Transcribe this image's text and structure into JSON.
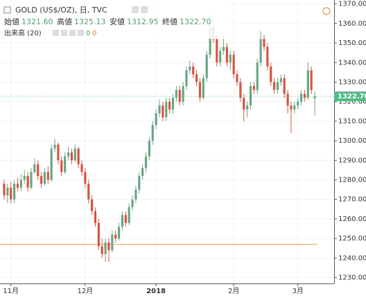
{
  "header": {
    "symbol": "GOLD (US$/OZ), 日, TVC",
    "open_label": "始値",
    "open": "1321.60",
    "high_label": "高値",
    "high": "1325.13",
    "low_label": "安値",
    "low": "1312.95",
    "close_label": "終値",
    "close": "1322.70",
    "volume_label": "出来高 (20)",
    "volume_a": "0",
    "volume_b": "0"
  },
  "chart_data": {
    "type": "candlestick",
    "up_color": "#6ba583",
    "down_color": "#d75442",
    "categories": [
      null,
      null,
      "11月",
      null,
      null,
      null,
      null,
      null,
      null,
      null,
      null,
      null,
      null,
      null,
      null,
      null,
      null,
      null,
      null,
      null,
      null,
      null,
      null,
      null,
      "12月",
      null,
      null,
      null,
      null,
      null,
      null,
      null,
      null,
      null,
      null,
      null,
      null,
      null,
      null,
      null,
      null,
      null,
      null,
      null,
      null,
      "2018",
      null,
      null,
      null,
      null,
      null,
      null,
      null,
      null,
      null,
      null,
      null,
      null,
      null,
      null,
      null,
      null,
      null,
      null,
      null,
      null,
      null,
      null,
      "2月",
      null,
      null,
      null,
      null,
      null,
      null,
      null,
      null,
      null,
      null,
      null,
      null,
      null,
      null,
      null,
      null,
      null,
      null,
      "3月",
      null,
      null,
      null,
      null,
      null
    ],
    "candles": [
      [
        1278,
        1280,
        1270,
        1272
      ],
      [
        1272,
        1278,
        1268,
        1276
      ],
      [
        1276,
        1279,
        1268,
        1270
      ],
      [
        1270,
        1280,
        1268,
        1278
      ],
      [
        1278,
        1281,
        1274,
        1276
      ],
      [
        1276,
        1283,
        1274,
        1280
      ],
      [
        1280,
        1285,
        1278,
        1282
      ],
      [
        1282,
        1284,
        1274,
        1276
      ],
      [
        1276,
        1286,
        1275,
        1284
      ],
      [
        1284,
        1291,
        1283,
        1288
      ],
      [
        1288,
        1290,
        1280,
        1282
      ],
      [
        1282,
        1284,
        1276,
        1278
      ],
      [
        1278,
        1286,
        1277,
        1284
      ],
      [
        1284,
        1287,
        1278,
        1280
      ],
      [
        1280,
        1298,
        1279,
        1296
      ],
      [
        1296,
        1301,
        1294,
        1298
      ],
      [
        1298,
        1299,
        1288,
        1290
      ],
      [
        1290,
        1292,
        1282,
        1284
      ],
      [
        1284,
        1294,
        1283,
        1292
      ],
      [
        1292,
        1297,
        1290,
        1294
      ],
      [
        1294,
        1296,
        1288,
        1290
      ],
      [
        1290,
        1298,
        1289,
        1296
      ],
      [
        1296,
        1297,
        1286,
        1288
      ],
      [
        1288,
        1290,
        1282,
        1284
      ],
      [
        1284,
        1286,
        1276,
        1278
      ],
      [
        1278,
        1280,
        1268,
        1270
      ],
      [
        1270,
        1272,
        1262,
        1264
      ],
      [
        1264,
        1266,
        1256,
        1258
      ],
      [
        1258,
        1260,
        1244,
        1246
      ],
      [
        1246,
        1250,
        1240,
        1242
      ],
      [
        1242,
        1250,
        1238,
        1248
      ],
      [
        1248,
        1250,
        1238,
        1244
      ],
      [
        1244,
        1254,
        1243,
        1252
      ],
      [
        1252,
        1254,
        1248,
        1250
      ],
      [
        1250,
        1258,
        1249,
        1256
      ],
      [
        1256,
        1264,
        1254,
        1262
      ],
      [
        1262,
        1264,
        1256,
        1258
      ],
      [
        1258,
        1268,
        1257,
        1266
      ],
      [
        1266,
        1272,
        1264,
        1270
      ],
      [
        1270,
        1277,
        1268,
        1275
      ],
      [
        1275,
        1284,
        1273,
        1282
      ],
      [
        1282,
        1288,
        1280,
        1286
      ],
      [
        1286,
        1294,
        1284,
        1292
      ],
      [
        1292,
        1302,
        1290,
        1300
      ],
      [
        1300,
        1310,
        1298,
        1308
      ],
      [
        1308,
        1316,
        1306,
        1314
      ],
      [
        1314,
        1321,
        1312,
        1318
      ],
      [
        1318,
        1320,
        1310,
        1312
      ],
      [
        1312,
        1322,
        1310,
        1320
      ],
      [
        1320,
        1322,
        1314,
        1316
      ],
      [
        1316,
        1324,
        1314,
        1322
      ],
      [
        1322,
        1328,
        1320,
        1326
      ],
      [
        1326,
        1328,
        1318,
        1320
      ],
      [
        1320,
        1330,
        1318,
        1328
      ],
      [
        1328,
        1338,
        1326,
        1336
      ],
      [
        1336,
        1341,
        1334,
        1338
      ],
      [
        1338,
        1340,
        1332,
        1334
      ],
      [
        1334,
        1336,
        1328,
        1330
      ],
      [
        1330,
        1332,
        1320,
        1322
      ],
      [
        1322,
        1334,
        1321,
        1332
      ],
      [
        1332,
        1346,
        1330,
        1344
      ],
      [
        1344,
        1366,
        1342,
        1358
      ],
      [
        1358,
        1362,
        1350,
        1352
      ],
      [
        1352,
        1354,
        1338,
        1340
      ],
      [
        1340,
        1348,
        1338,
        1346
      ],
      [
        1346,
        1356,
        1344,
        1348
      ],
      [
        1348,
        1350,
        1338,
        1340
      ],
      [
        1340,
        1346,
        1336,
        1344
      ],
      [
        1344,
        1346,
        1332,
        1334
      ],
      [
        1334,
        1336,
        1328,
        1330
      ],
      [
        1330,
        1332,
        1320,
        1322
      ],
      [
        1322,
        1324,
        1310,
        1316
      ],
      [
        1316,
        1320,
        1312,
        1318
      ],
      [
        1318,
        1330,
        1316,
        1328
      ],
      [
        1328,
        1330,
        1324,
        1326
      ],
      [
        1326,
        1342,
        1324,
        1340
      ],
      [
        1340,
        1356,
        1338,
        1352
      ],
      [
        1352,
        1354,
        1346,
        1348
      ],
      [
        1348,
        1350,
        1336,
        1338
      ],
      [
        1338,
        1340,
        1328,
        1330
      ],
      [
        1330,
        1332,
        1324,
        1326
      ],
      [
        1326,
        1332,
        1324,
        1330
      ],
      [
        1330,
        1334,
        1328,
        1332
      ],
      [
        1332,
        1334,
        1322,
        1324
      ],
      [
        1324,
        1326,
        1314,
        1318
      ],
      [
        1318,
        1320,
        1304,
        1316
      ],
      [
        1316,
        1320,
        1314,
        1318
      ],
      [
        1318,
        1322,
        1316,
        1320
      ],
      [
        1320,
        1326,
        1318,
        1324
      ],
      [
        1324,
        1326,
        1320,
        1322
      ],
      [
        1322,
        1340,
        1321,
        1336
      ],
      [
        1336,
        1338,
        1324,
        1326
      ],
      [
        1321.6,
        1325.13,
        1312.95,
        1322.7
      ]
    ],
    "ylim": [
      1227,
      1372
    ],
    "yticks": [
      {
        "value": 1230,
        "label": "1230.00"
      },
      {
        "value": 1240,
        "label": "1240.00"
      },
      {
        "value": 1250,
        "label": "1250.00"
      },
      {
        "value": 1260,
        "label": "1260.00"
      },
      {
        "value": 1270,
        "label": "1270.00"
      },
      {
        "value": 1280,
        "label": "1280.00"
      },
      {
        "value": 1290,
        "label": "1290.00"
      },
      {
        "value": 1300,
        "label": "1300.00"
      },
      {
        "value": 1310,
        "label": "1310.00"
      },
      {
        "value": 1320,
        "label": "1320.00"
      },
      {
        "value": 1330,
        "label": "1330.00"
      },
      {
        "value": 1340,
        "label": "1340.00"
      },
      {
        "value": 1350,
        "label": "1350.00"
      },
      {
        "value": 1360,
        "label": "1360.00"
      },
      {
        "value": 1370,
        "label": "1370.00"
      }
    ],
    "price_line": {
      "value": 1322.7,
      "label": "1322.70",
      "color": "#53b987"
    },
    "hline": {
      "value": 1247,
      "color": "#f0a050"
    }
  }
}
